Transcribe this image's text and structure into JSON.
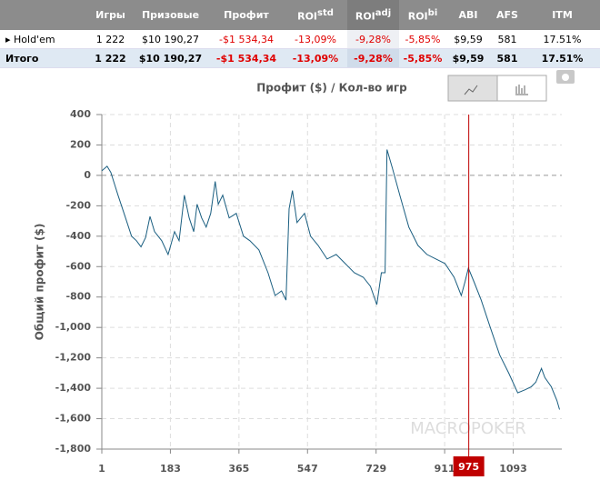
{
  "table": {
    "headers": [
      {
        "text": "Игры"
      },
      {
        "text": "Призовые"
      },
      {
        "text": "Профит"
      },
      {
        "text": "ROI",
        "sup": "std"
      },
      {
        "text": "ROI",
        "sup": "adj"
      },
      {
        "text": "ROI",
        "sup": "bi"
      },
      {
        "text": "ABI"
      },
      {
        "text": "AFS"
      },
      {
        "text": "ITM"
      }
    ],
    "rows": [
      [
        "Hold'em",
        "1 222",
        "$10 190,27",
        "-$1 534,34",
        "-13,09%",
        "-9,28%",
        "-5,85%",
        "$9,59",
        "581",
        "17.51%"
      ],
      [
        "Итого",
        "1 222",
        "$10 190,27",
        "-$1 534,34",
        "-13,09%",
        "-9,28%",
        "-5,85%",
        "$9,59",
        "581",
        "17.51%"
      ]
    ]
  },
  "chart_data": {
    "type": "line",
    "title": "Профит ($) / Кол-во игр",
    "y_label": "Общий профит ($)",
    "watermark": "MACROPOKER",
    "color": "#1a5e80",
    "x": [
      1,
      15,
      25,
      44,
      64,
      80,
      93,
      105,
      117,
      129,
      141,
      160,
      177,
      184,
      194,
      206,
      220,
      233,
      245,
      254,
      266,
      278,
      290,
      302,
      310,
      322,
      339,
      358,
      377,
      394,
      418,
      442,
      461,
      478,
      490,
      498,
      507,
      519,
      539,
      555,
      575,
      599,
      623,
      647,
      671,
      695,
      714,
      731,
      743,
      753,
      758,
      772,
      792,
      816,
      840,
      864,
      888,
      912,
      936,
      955,
      965,
      974,
      989,
      1008,
      1032,
      1057,
      1081,
      1105,
      1124,
      1141,
      1153,
      1168,
      1177,
      1194,
      1209,
      1216
    ],
    "values": [
      30,
      60,
      20,
      -130,
      -280,
      -400,
      -430,
      -470,
      -410,
      -270,
      -370,
      -430,
      -520,
      -460,
      -370,
      -430,
      -130,
      -280,
      -370,
      -190,
      -280,
      -340,
      -250,
      -40,
      -190,
      -130,
      -280,
      -250,
      -400,
      -430,
      -490,
      -640,
      -790,
      -760,
      -820,
      -220,
      -100,
      -310,
      -250,
      -400,
      -460,
      -550,
      -520,
      -580,
      -640,
      -670,
      -730,
      -850,
      -640,
      -640,
      170,
      50,
      -130,
      -340,
      -460,
      -520,
      -550,
      -580,
      -670,
      -790,
      -700,
      -610,
      -700,
      -820,
      -1000,
      -1180,
      -1300,
      -1430,
      -1410,
      -1390,
      -1360,
      -1270,
      -1330,
      -1390,
      -1480,
      -1540
    ],
    "xlim": [
      1,
      1222
    ],
    "xticks": [
      1,
      183,
      365,
      547,
      729,
      911,
      1093
    ],
    "ylim": [
      -1800,
      400
    ],
    "yticks": [
      400,
      200,
      0,
      -200,
      -400,
      -600,
      -800,
      {
        "value": -1000,
        "label": "-1,000"
      },
      {
        "value": -1200,
        "label": "-1,200"
      },
      {
        "value": -1400,
        "label": "-1,400"
      },
      {
        "value": -1600,
        "label": "-1,600"
      },
      {
        "value": -1800,
        "label": "-1,800"
      }
    ],
    "grid": true,
    "cursor_x": 975,
    "cursor_color": "#c00000"
  }
}
